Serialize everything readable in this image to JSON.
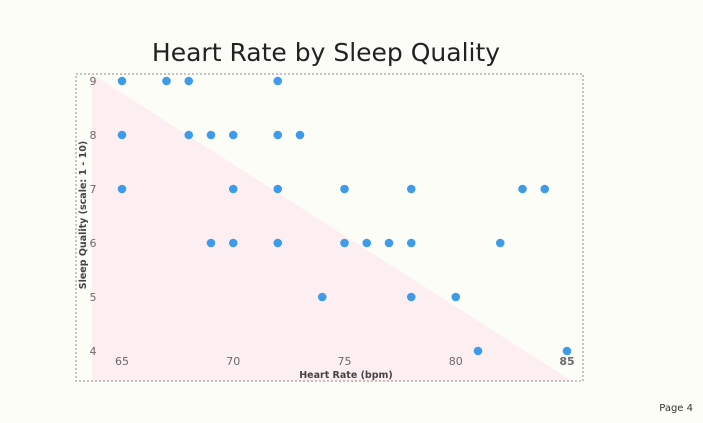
{
  "page": {
    "label": "Page 4"
  },
  "colors": {
    "point": "#3d9be9",
    "background_shape": "#fdeef1",
    "frame": "#8a8a8a"
  },
  "chart_data": {
    "type": "scatter",
    "title": "Heart Rate by Sleep Quality",
    "xlabel": "Heart Rate (bpm)",
    "ylabel": "Sleep Quality (scale: 1 - 10)",
    "xlim": [
      65,
      85
    ],
    "ylim": [
      4,
      9
    ],
    "x_ticks": [
      "65",
      "70",
      "75",
      "80",
      "85"
    ],
    "y_ticks": [
      "9",
      "8",
      "7",
      "6",
      "5",
      "4"
    ],
    "grid": false,
    "points": [
      {
        "x": 65,
        "y": 9
      },
      {
        "x": 67,
        "y": 9
      },
      {
        "x": 68,
        "y": 9
      },
      {
        "x": 72,
        "y": 9
      },
      {
        "x": 65,
        "y": 8
      },
      {
        "x": 68,
        "y": 8
      },
      {
        "x": 69,
        "y": 8
      },
      {
        "x": 70,
        "y": 8
      },
      {
        "x": 72,
        "y": 8
      },
      {
        "x": 73,
        "y": 8
      },
      {
        "x": 65,
        "y": 7
      },
      {
        "x": 70,
        "y": 7
      },
      {
        "x": 72,
        "y": 7
      },
      {
        "x": 75,
        "y": 7
      },
      {
        "x": 78,
        "y": 7
      },
      {
        "x": 83,
        "y": 7
      },
      {
        "x": 84,
        "y": 7
      },
      {
        "x": 69,
        "y": 6
      },
      {
        "x": 70,
        "y": 6
      },
      {
        "x": 72,
        "y": 6
      },
      {
        "x": 75,
        "y": 6
      },
      {
        "x": 76,
        "y": 6
      },
      {
        "x": 77,
        "y": 6
      },
      {
        "x": 78,
        "y": 6
      },
      {
        "x": 82,
        "y": 6
      },
      {
        "x": 74,
        "y": 5
      },
      {
        "x": 78,
        "y": 5
      },
      {
        "x": 80,
        "y": 5
      },
      {
        "x": 81,
        "y": 4
      },
      {
        "x": 85,
        "y": 4
      }
    ]
  }
}
